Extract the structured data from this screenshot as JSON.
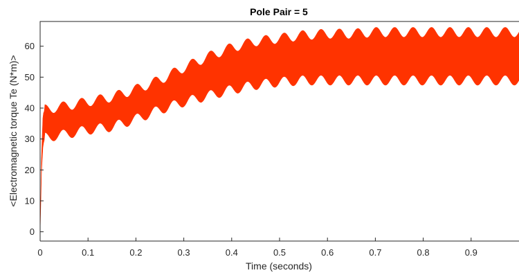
{
  "chart_data": {
    "type": "area",
    "title": "Pole Pair = 5",
    "xlabel": "Time (seconds)",
    "ylabel": "<Electromagnetic torque Te (N*m)>",
    "xlim": [
      0,
      1
    ],
    "ylim": [
      -3,
      68
    ],
    "xticks": [
      "0",
      "0.1",
      "0.2",
      "0.3",
      "0.4",
      "0.5",
      "0.6",
      "0.7",
      "0.8",
      "0.9"
    ],
    "yticks": [
      "0",
      "10",
      "20",
      "30",
      "40",
      "50",
      "60"
    ],
    "grid": false,
    "series": [
      {
        "color": "#ff3300",
        "x": [
          0,
          0.003,
          0.006,
          0.01,
          0.05,
          0.1,
          0.15,
          0.2,
          0.25,
          0.3,
          0.35,
          0.4,
          0.45,
          0.5,
          0.55,
          0.6,
          0.65,
          0.7,
          0.75,
          0.8,
          0.85,
          0.9,
          0.95,
          1.0
        ],
        "upper": [
          0,
          25,
          38,
          39.5,
          40.5,
          42,
          43.5,
          46,
          49,
          53,
          56.5,
          59.5,
          61.5,
          62.5,
          63.5,
          64,
          64,
          64.5,
          64.5,
          64.5,
          64.5,
          64.5,
          64.5,
          64.5
        ],
        "lower": [
          0,
          20,
          28,
          30.5,
          31.5,
          33,
          34,
          36.5,
          39.5,
          42,
          44,
          46,
          47.5,
          48.5,
          49,
          49,
          49,
          49,
          49,
          49,
          49,
          49,
          49,
          49
        ]
      }
    ]
  }
}
